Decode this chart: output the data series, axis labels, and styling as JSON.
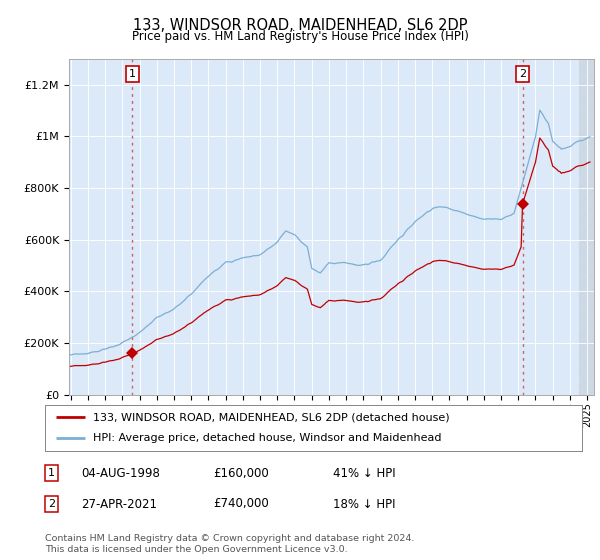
{
  "title": "133, WINDSOR ROAD, MAIDENHEAD, SL6 2DP",
  "subtitle": "Price paid vs. HM Land Registry's House Price Index (HPI)",
  "plot_bg_color": "#dce9f8",
  "hpi_color": "#7bafd4",
  "price_color": "#c00000",
  "vline_color": "#d06060",
  "ylim": [
    0,
    1300000
  ],
  "yticks": [
    0,
    200000,
    400000,
    600000,
    800000,
    1000000,
    1200000
  ],
  "ytick_labels": [
    "£0",
    "£200K",
    "£400K",
    "£600K",
    "£800K",
    "£1M",
    "£1.2M"
  ],
  "sale1_year_idx": 43,
  "sale1_price": 160000,
  "sale1_label": "1",
  "sale2_year_idx": 314,
  "sale2_price": 740000,
  "sale2_label": "2",
  "legend_line1": "133, WINDSOR ROAD, MAIDENHEAD, SL6 2DP (detached house)",
  "legend_line2": "HPI: Average price, detached house, Windsor and Maidenhead",
  "note1_num": "1",
  "note1_date": "04-AUG-1998",
  "note1_price": "£160,000",
  "note1_hpi": "41% ↓ HPI",
  "note2_num": "2",
  "note2_date": "27-APR-2021",
  "note2_price": "£740,000",
  "note2_hpi": "18% ↓ HPI",
  "copyright": "Contains HM Land Registry data © Crown copyright and database right 2024.\nThis data is licensed under the Open Government Licence v3.0."
}
